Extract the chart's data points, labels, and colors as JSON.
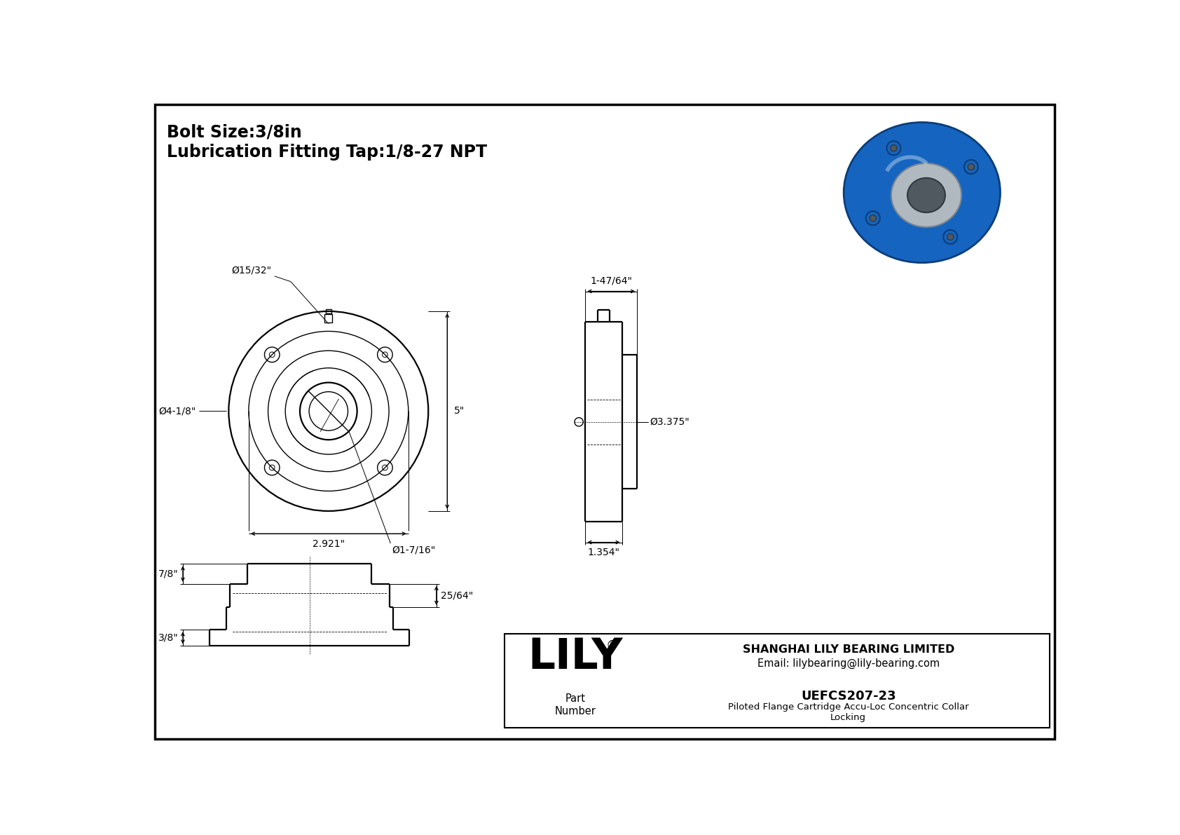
{
  "bg_color": "#ffffff",
  "border_color": "#000000",
  "line_color": "#000000",
  "title_line1": "Bolt Size:3/8in",
  "title_line2": "Lubrication Fitting Tap:1/8-27 NPT",
  "title_fontsize": 17,
  "company_name": "SHANGHAI LILY BEARING LIMITED",
  "company_email": "Email: lilybearing@lily-bearing.com",
  "lily_text": "LILY",
  "reg_symbol": "®",
  "part_number_label": "Part\nNumber",
  "part_number": "UEFCS207-23",
  "part_description": "Piloted Flange Cartridge Accu-Loc Concentric Collar\nLocking",
  "dim_bolt_hole": "Ø15/32\"",
  "dim_outer_dia": "Ø4-1/8\"",
  "dim_bore": "Ø1-7/16\"",
  "dim_height": "5\"",
  "dim_bolt_circle": "2.921\"",
  "dim_side_width": "1-47/64\"",
  "dim_side_height": "1.354\"",
  "dim_side_dia": "Ø3.375\"",
  "dim_bottom_7_8": "7/8\"",
  "dim_bottom_25_64": "25/64\"",
  "dim_bottom_3_8": "3/8\""
}
